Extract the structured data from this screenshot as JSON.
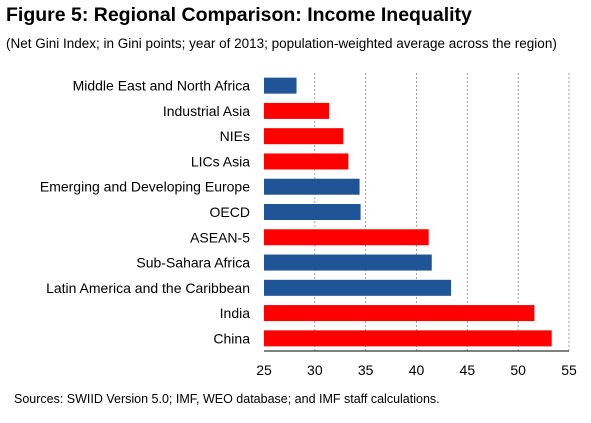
{
  "title": "Figure 5: Regional Comparison: Income Inequality",
  "subtitle": "(Net Gini Index; in Gini points; year of 2013; population-weighted average across the region)",
  "source": "Sources: SWIID Version 5.0; IMF, WEO database; and IMF staff calculations.",
  "colors": {
    "red": "#fe0000",
    "blue": "#1f5496",
    "grid": "#8c8c8c"
  },
  "chart_data": {
    "type": "bar",
    "orientation": "horizontal",
    "categories": [
      "Middle East and North Africa",
      "Industrial Asia",
      "NIEs",
      "LICs Asia",
      "Emerging and Developing Europe",
      "OECD",
      "ASEAN-5",
      "Sub-Sahara Africa",
      "Latin America and the Caribbean",
      "India",
      "China"
    ],
    "values": [
      28.2,
      31.4,
      32.8,
      33.3,
      34.4,
      34.5,
      41.2,
      41.5,
      43.4,
      51.6,
      53.3
    ],
    "bar_colors": [
      "blue",
      "red",
      "red",
      "red",
      "blue",
      "blue",
      "red",
      "blue",
      "blue",
      "red",
      "red"
    ],
    "xlim": [
      25,
      55
    ],
    "xticks": [
      25,
      30,
      35,
      40,
      45,
      50,
      55
    ],
    "xlabel": "",
    "ylabel": "",
    "grid": "vertical dashed"
  }
}
